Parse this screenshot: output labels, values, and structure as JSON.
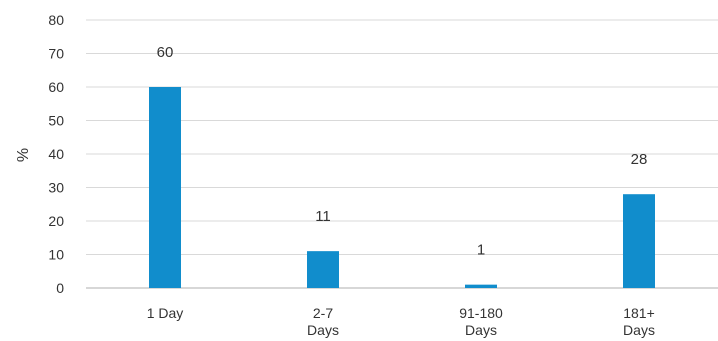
{
  "chart_data": {
    "type": "bar",
    "categories": [
      [
        "1 Day"
      ],
      [
        "2-7",
        "Days"
      ],
      [
        "91-180",
        "Days"
      ],
      [
        "181+",
        "Days"
      ]
    ],
    "values": [
      60,
      11,
      1,
      28
    ],
    "data_labels": [
      "60",
      "11",
      "1",
      "28"
    ],
    "ylabel": "%",
    "ylim": [
      0,
      80
    ],
    "yticks": [
      0,
      10,
      20,
      30,
      40,
      50,
      60,
      70,
      80
    ],
    "grid": true,
    "bar_color": "#118dcc"
  }
}
